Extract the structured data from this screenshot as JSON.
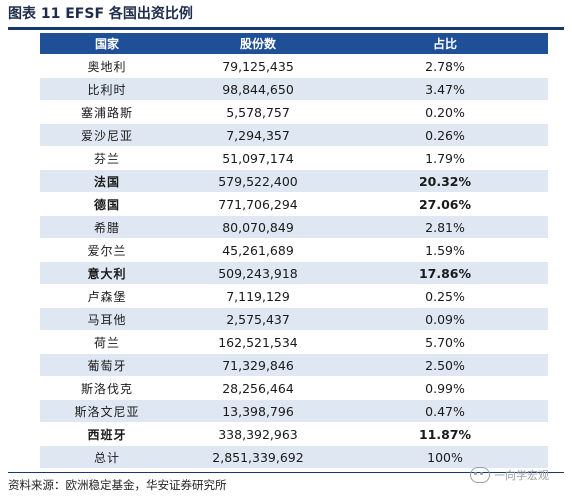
{
  "title": "图表 11 EFSF 各国出资比例",
  "table": {
    "headers": [
      "国家",
      "股份数",
      "占比"
    ],
    "rows": [
      {
        "country": "奥地利",
        "shares": "79,125,435",
        "pct": "2.78%",
        "bold": false
      },
      {
        "country": "比利时",
        "shares": "98,844,650",
        "pct": "3.47%",
        "bold": false
      },
      {
        "country": "塞浦路斯",
        "shares": "5,578,757",
        "pct": "0.20%",
        "bold": false
      },
      {
        "country": "爱沙尼亚",
        "shares": "7,294,357",
        "pct": "0.26%",
        "bold": false
      },
      {
        "country": "芬兰",
        "shares": "51,097,174",
        "pct": "1.79%",
        "bold": false
      },
      {
        "country": "法国",
        "shares": "579,522,400",
        "pct": "20.32%",
        "bold": true
      },
      {
        "country": "德国",
        "shares": "771,706,294",
        "pct": "27.06%",
        "bold": true
      },
      {
        "country": "希腊",
        "shares": "80,070,849",
        "pct": "2.81%",
        "bold": false
      },
      {
        "country": "爱尔兰",
        "shares": "45,261,689",
        "pct": "1.59%",
        "bold": false
      },
      {
        "country": "意大利",
        "shares": "509,243,918",
        "pct": "17.86%",
        "bold": true
      },
      {
        "country": "卢森堡",
        "shares": "7,119,129",
        "pct": "0.25%",
        "bold": false
      },
      {
        "country": "马耳他",
        "shares": "2,575,437",
        "pct": "0.09%",
        "bold": false
      },
      {
        "country": "荷兰",
        "shares": "162,521,534",
        "pct": "5.70%",
        "bold": false
      },
      {
        "country": "葡萄牙",
        "shares": "71,329,846",
        "pct": "2.50%",
        "bold": false
      },
      {
        "country": "斯洛伐克",
        "shares": "28,256,464",
        "pct": "0.99%",
        "bold": false
      },
      {
        "country": "斯洛文尼亚",
        "shares": "13,398,796",
        "pct": "0.47%",
        "bold": false
      },
      {
        "country": "西班牙",
        "shares": "338,392,963",
        "pct": "11.87%",
        "bold": true
      },
      {
        "country": "总计",
        "shares": "2,851,339,692",
        "pct": "100%",
        "bold": false
      }
    ]
  },
  "source": "资料来源：欧洲稳定基金，华安证券研究所",
  "watermark": {
    "text": "一向学宏观",
    "icon": "wechat-icon"
  },
  "colors": {
    "header_bg": "#1e4f97",
    "stripe_bg": "#dfe7f3",
    "rule": "#163a6e"
  }
}
